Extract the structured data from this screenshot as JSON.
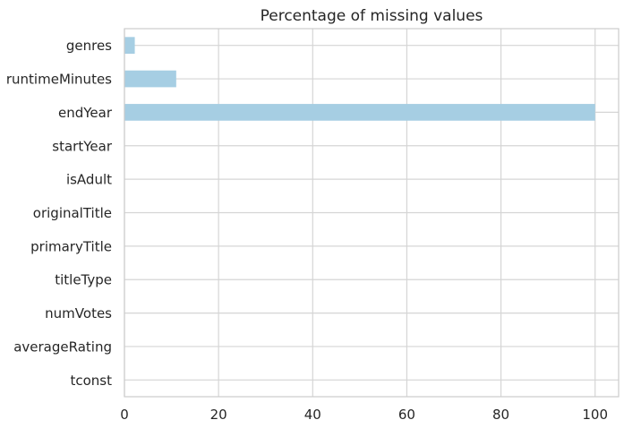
{
  "chart_data": {
    "type": "bar",
    "orientation": "horizontal",
    "title": "Percentage of missing values",
    "xlabel": "",
    "ylabel": "",
    "categories": [
      "tconst",
      "averageRating",
      "numVotes",
      "titleType",
      "primaryTitle",
      "originalTitle",
      "isAdult",
      "startYear",
      "endYear",
      "runtimeMinutes",
      "genres"
    ],
    "values": [
      0,
      0,
      0,
      0,
      0,
      0,
      0,
      0,
      100,
      11,
      2.2
    ],
    "xlim": [
      0,
      105
    ],
    "xticks": [
      0,
      20,
      40,
      60,
      80,
      100
    ],
    "xtick_labels": [
      "0",
      "20",
      "40",
      "60",
      "80",
      "100"
    ],
    "grid": true,
    "colors": {
      "bar": "#a6cee3",
      "grid": "#d5d5d5",
      "axes": "#cccccc",
      "text": "#262626",
      "background": "#ffffff"
    }
  }
}
